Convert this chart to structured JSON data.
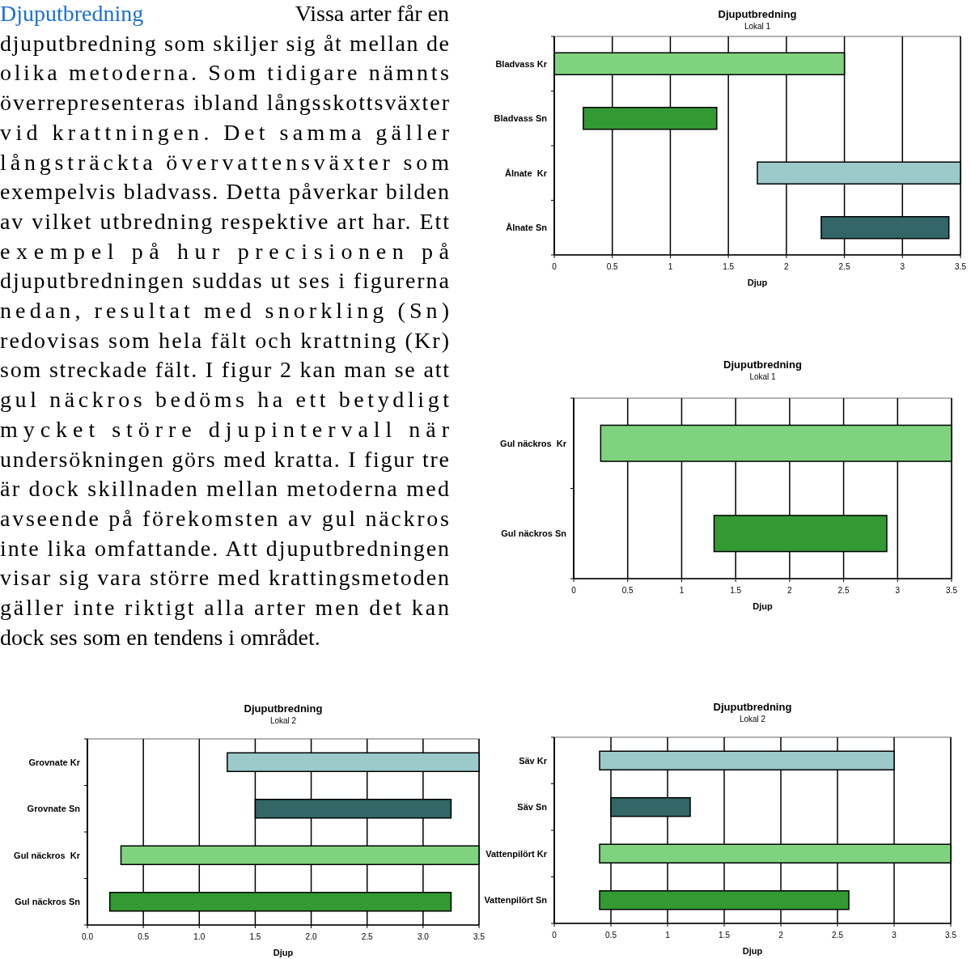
{
  "chart_data": [
    {
      "type": "other",
      "annotations": [
        "Djuputbredning",
        "Vissa arter får en",
        "djuputbredning som skiljer sig åt mellan de",
        "olika metoderna. Som tidigare nämnts",
        "överrepresenteras ibland långsskottsväxter",
        "vid krattningen. Det samma gäller",
        "långsträckta övervattensväxter som",
        "exempelvis bladvass. Detta påverkar bilden",
        "av vilket utbredning respektive art har. Ett",
        "exempel på hur precisionen på",
        "djuputbredningen suddas ut ses i figurerna",
        "nedan, resultat med snorkling (Sn)",
        "redovisas som hela fält och krattning (Kr)",
        "som streckade fält. I figur 2 kan man se att",
        "gul näckros bedöms ha ett betydligt",
        "mycket större djupintervall när",
        "undersökningen görs med kratta. I figur tre",
        "är dock skillnaden mellan metoderna med",
        "avseende på förekomsten av gul näckros",
        "inte lika omfattande. Att djuputbredningen",
        "visar sig vara större med krattingsmetoden",
        "gäller inte riktigt alla arter men det kan",
        "dock ses som en tendens i området."
      ]
    },
    {
      "type": "bar",
      "orientation": "horizontal",
      "title": "Djuputbredning",
      "subtitle": "Lokal 1",
      "xlabel": "Djup",
      "categories": [
        "Bladvass Kr",
        "Bladvass Sn",
        "Ålnate  Kr",
        "Ålnate Sn"
      ],
      "base": [
        0,
        0.25,
        1.75,
        2.3
      ],
      "values": [
        2.5,
        1.15,
        1.75,
        1.1
      ],
      "colors": [
        "#7fd37f",
        "#339933",
        "#9cc9c9",
        "#336666"
      ],
      "xlim": [
        0,
        3.5
      ],
      "xticks": [
        0,
        0.5,
        1,
        1.5,
        2,
        2.5,
        3,
        3.5
      ],
      "grid": "x"
    },
    {
      "type": "bar",
      "orientation": "horizontal",
      "title": "Djuputbredning",
      "subtitle": "Lokal 1",
      "xlabel": "Djup",
      "categories": [
        "Gul näckros  Kr",
        "Gul näckros Sn"
      ],
      "base": [
        0.25,
        1.3
      ],
      "values": [
        3.25,
        1.6
      ],
      "colors": [
        "#7fd37f",
        "#339933"
      ],
      "xlim": [
        0,
        3.5
      ],
      "xticks": [
        0,
        0.5,
        1,
        1.5,
        2,
        2.5,
        3,
        3.5
      ],
      "grid": "x"
    },
    {
      "type": "bar",
      "orientation": "horizontal",
      "title": "Djuputbredning",
      "subtitle": "Lokal 2",
      "xlabel": "Djup",
      "categories": [
        "Grovnate Kr",
        "Grovnate Sn",
        "Gul näckros  Kr",
        "Gul näckros Sn"
      ],
      "base": [
        1.25,
        1.5,
        0.3,
        0.2
      ],
      "values": [
        2.25,
        1.75,
        3.2,
        3.05
      ],
      "colors": [
        "#9cc9c9",
        "#336666",
        "#7fd37f",
        "#339933"
      ],
      "xlim": [
        0,
        3.5
      ],
      "xticks": [
        "0.0",
        "0.5",
        "1.0",
        "1.5",
        "2.0",
        "2.5",
        "3.0",
        "3.5"
      ],
      "grid": "x"
    },
    {
      "type": "bar",
      "orientation": "horizontal",
      "title": "Djuputbredning",
      "subtitle": "Lokal 2",
      "xlabel": "Djup",
      "categories": [
        "Säv Kr",
        "Säv Sn",
        "Vattenpilört Kr",
        "Vattenpilört Sn"
      ],
      "base": [
        0.4,
        0.5,
        0.4,
        0.4
      ],
      "values": [
        2.6,
        0.7,
        3.1,
        2.2
      ],
      "colors": [
        "#9cc9c9",
        "#336666",
        "#7fd37f",
        "#339933"
      ],
      "xlim": [
        0,
        3.5
      ],
      "xticks": [
        0,
        0.5,
        1,
        1.5,
        2,
        2.5,
        3,
        3.5
      ],
      "grid": "x"
    }
  ]
}
